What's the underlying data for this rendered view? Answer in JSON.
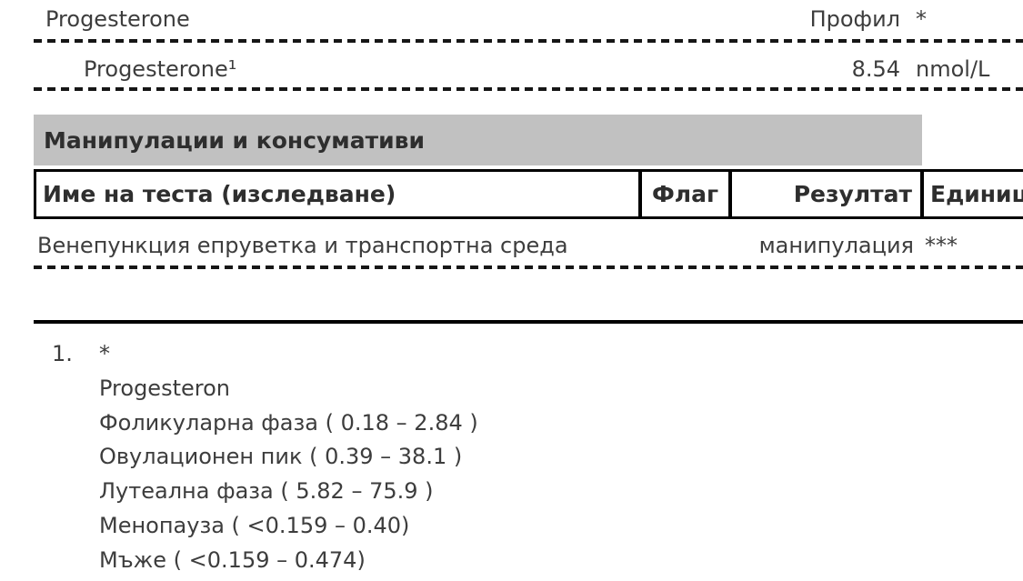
{
  "report": {
    "results_section": {
      "rows": [
        {
          "name": "Progesterone",
          "result": "Профил",
          "unit": "*"
        },
        {
          "name": "Progesterone¹",
          "result": "8.54",
          "unit": "nmol/L"
        }
      ]
    },
    "manipulations_section": {
      "title": "Манипулации и консумативи",
      "columns": {
        "name": "Име на теста (изследване)",
        "flag": "Флаг",
        "result": "Резултат",
        "unit": "Единици"
      },
      "rows": [
        {
          "name": "Венепункция епруветка и транспортна среда",
          "flag": "",
          "result": "манипулация",
          "unit": "***"
        }
      ]
    },
    "footnotes": [
      {
        "marker": "1.",
        "lines": [
          "*",
          "Progesteron",
          "Фоликуларна фаза ( 0.18 – 2.84 )",
          "Овулационен пик ( 0.39 – 38.1 )",
          "Лутеална фаза ( 5.82 – 75.9 )",
          "Менопауза ( <0.159 – 0.40)",
          "Мъже ( <0.159 – 0.474)"
        ]
      }
    ]
  },
  "colors": {
    "section_header_bg": "#c1c1c1",
    "body_text": "#3d3d3d",
    "heading_text": "#2e2e2e",
    "border": "#000000"
  }
}
